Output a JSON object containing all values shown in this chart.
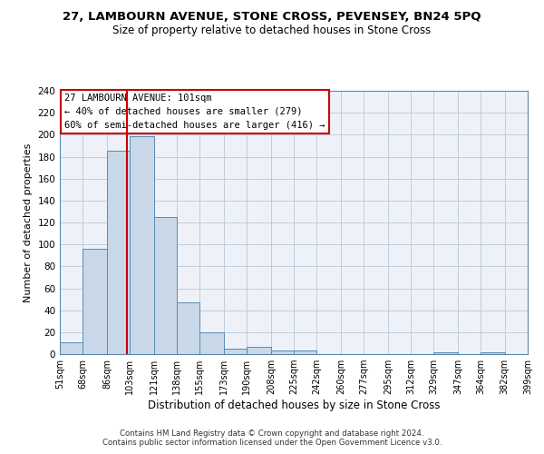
{
  "title": "27, LAMBOURN AVENUE, STONE CROSS, PEVENSEY, BN24 5PQ",
  "subtitle": "Size of property relative to detached houses in Stone Cross",
  "xlabel": "Distribution of detached houses by size in Stone Cross",
  "ylabel": "Number of detached properties",
  "bar_color": "#c8d8e8",
  "bar_edge_color": "#5a8ab0",
  "bg_color": "#eef2f8",
  "grid_color": "#b8c8d8",
  "bins": [
    51,
    68,
    86,
    103,
    121,
    138,
    155,
    173,
    190,
    208,
    225,
    242,
    260,
    277,
    295,
    312,
    329,
    347,
    364,
    382,
    399
  ],
  "counts": [
    11,
    96,
    185,
    199,
    125,
    47,
    20,
    5,
    7,
    3,
    3,
    0,
    0,
    0,
    0,
    0,
    2,
    0,
    2,
    0
  ],
  "property_size": 101,
  "vline_color": "#cc0000",
  "annotation_text": "27 LAMBOURN AVENUE: 101sqm\n← 40% of detached houses are smaller (279)\n60% of semi-detached houses are larger (416) →",
  "annotation_box_color": "white",
  "annotation_box_edge": "#cc0000",
  "footer": "Contains HM Land Registry data © Crown copyright and database right 2024.\nContains public sector information licensed under the Open Government Licence v3.0.",
  "ylim": [
    0,
    240
  ],
  "yticks": [
    0,
    20,
    40,
    60,
    80,
    100,
    120,
    140,
    160,
    180,
    200,
    220,
    240
  ]
}
